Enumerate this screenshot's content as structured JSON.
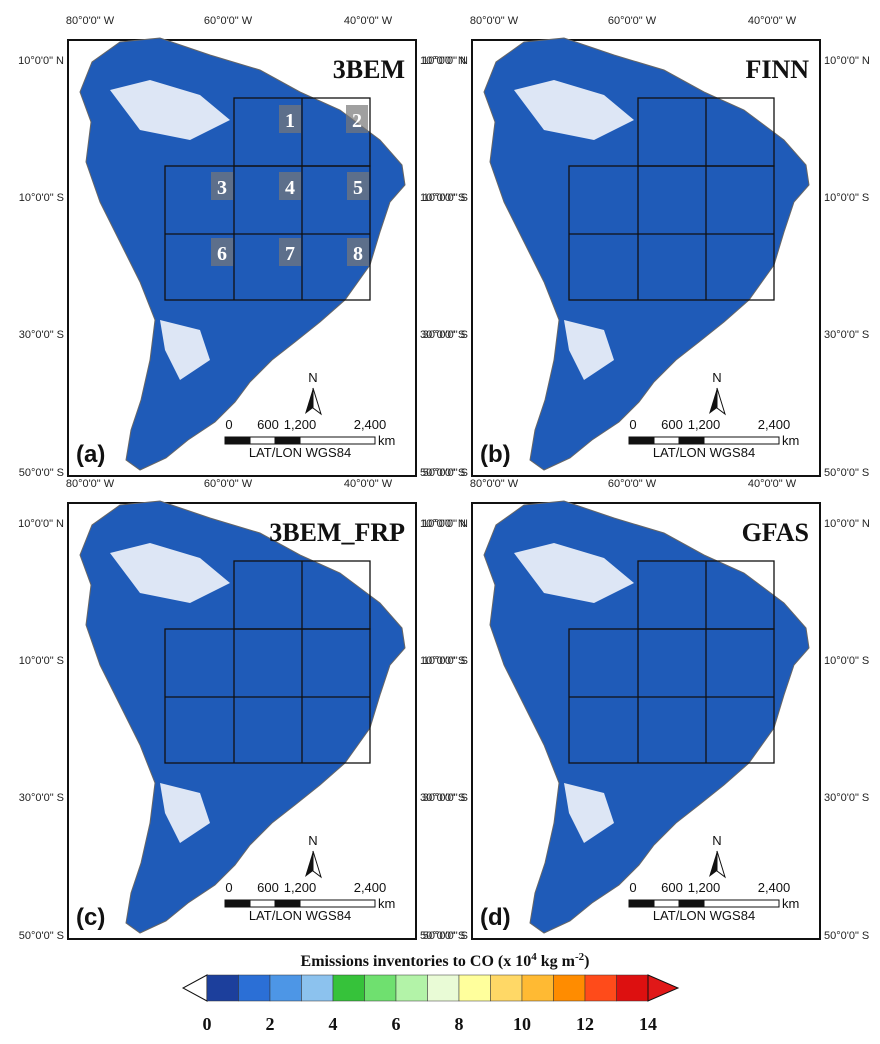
{
  "lon_labels": [
    "80°0'0\" W",
    "60°0'0\" W",
    "40°0'0\" W"
  ],
  "lat_labels": [
    "10°0'0\" N",
    "10°0'0\" S",
    "30°0'0\" S",
    "50°0'0\" S"
  ],
  "panels": [
    {
      "title": "3BEM",
      "letter": "(a)",
      "regions": [
        "1",
        "2",
        "3",
        "4",
        "5",
        "6",
        "7",
        "8"
      ]
    },
    {
      "title": "FINN",
      "letter": "(b)"
    },
    {
      "title": "3BEM_FRP",
      "letter": "(c)"
    },
    {
      "title": "GFAS",
      "letter": "(d)"
    }
  ],
  "scale": {
    "labels": [
      "0",
      "600",
      "1,200",
      "2,400"
    ],
    "unit": "km",
    "datum": "LAT/LON  WGS84",
    "north": "N"
  },
  "colorbar": {
    "title": [
      "Emissions inventories to CO (x 10",
      "4",
      " kg m",
      "-2",
      ")"
    ],
    "ticks": [
      "0",
      "2",
      "4",
      "6",
      "8",
      "10",
      "12",
      "14"
    ],
    "colors": [
      "#ffffff",
      "#1c3f9c",
      "#2b6fd6",
      "#4d96e6",
      "#8cc2ee",
      "#36c23a",
      "#6fe06f",
      "#b3f3a8",
      "#e9fbd6",
      "#ffff9c",
      "#ffd866",
      "#ffba33",
      "#ff8c00",
      "#ff4b1a",
      "#dd1010",
      "#e01818"
    ]
  }
}
